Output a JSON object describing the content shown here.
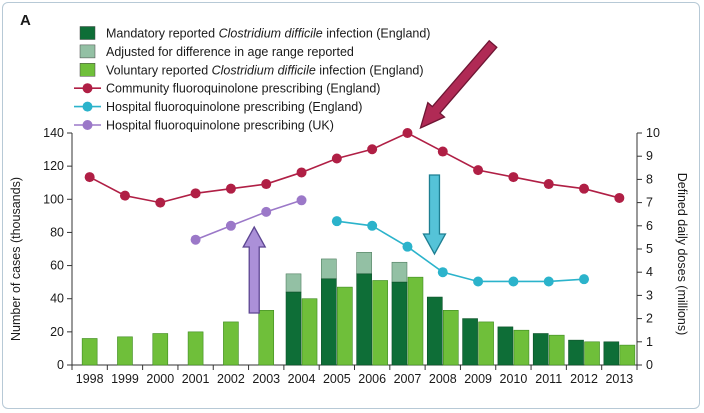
{
  "chart_data": {
    "type": "bar+line",
    "panel_label": "A",
    "years": [
      "1998",
      "1999",
      "2000",
      "2001",
      "2002",
      "2003",
      "2004",
      "2005",
      "2006",
      "2007",
      "2008",
      "2009",
      "2010",
      "2011",
      "2012",
      "2013"
    ],
    "left_axis": {
      "title": "Number of cases (thousands)",
      "min": 0,
      "max": 140,
      "ticks": [
        0,
        20,
        40,
        60,
        80,
        100,
        120,
        140
      ]
    },
    "right_axis": {
      "title": "Defined daily doses (millions)",
      "min": 0,
      "max": 10,
      "ticks": [
        0,
        1,
        2,
        3,
        4,
        5,
        6,
        7,
        8,
        9,
        10
      ]
    },
    "legend": [
      {
        "key": "mandatory",
        "text_pre": "Mandatory reported ",
        "text_italic": "Clostridium difficile",
        "text_post": " infection (England)",
        "symbol": "bar",
        "color": "#0e6e37"
      },
      {
        "key": "adjusted",
        "text_pre": "Adjusted for difference in age range reported",
        "text_italic": "",
        "text_post": "",
        "symbol": "bar",
        "color": "#93c0a4"
      },
      {
        "key": "voluntary",
        "text_pre": "Voluntary reported ",
        "text_italic": "Clostridium difficile",
        "text_post": " infection (England)",
        "symbol": "bar",
        "color": "#6fbf3a"
      },
      {
        "key": "community",
        "text_pre": "Community fluoroquinolone prescribing (England)",
        "text_italic": "",
        "text_post": "",
        "symbol": "line",
        "color": "#b01f45"
      },
      {
        "key": "hospital_eng",
        "text_pre": "Hospital fluoroquinolone prescribing (England)",
        "text_italic": "",
        "text_post": "",
        "symbol": "line",
        "color": "#2bb3cb"
      },
      {
        "key": "hospital_uk",
        "text_pre": "Hospital fluoroquinolone prescribing (UK)",
        "text_italic": "",
        "text_post": "",
        "symbol": "line",
        "color": "#9b78c8"
      }
    ],
    "bars": {
      "mandatory": [
        null,
        null,
        null,
        null,
        null,
        null,
        44,
        52,
        55,
        50,
        41,
        28,
        23,
        19,
        15,
        14
      ],
      "adjusted_total": [
        null,
        null,
        null,
        null,
        null,
        null,
        55,
        64,
        68,
        62,
        null,
        null,
        null,
        null,
        null,
        null
      ],
      "voluntary": [
        16,
        17,
        19,
        20,
        26,
        33,
        40,
        47,
        51,
        53,
        33,
        26,
        21,
        18,
        14,
        12
      ]
    },
    "lines": {
      "community": [
        8.1,
        7.3,
        7.0,
        7.4,
        7.6,
        7.8,
        8.3,
        8.9,
        9.3,
        10.0,
        9.2,
        8.4,
        8.1,
        7.8,
        7.6,
        7.2
      ],
      "hospital_eng": [
        null,
        null,
        null,
        null,
        null,
        null,
        null,
        6.2,
        6.0,
        5.1,
        4.0,
        3.6,
        3.6,
        3.6,
        3.7,
        null
      ],
      "hospital_uk": [
        null,
        null,
        null,
        5.4,
        6.0,
        6.6,
        7.1,
        null,
        null,
        null,
        null,
        null,
        null,
        null,
        null,
        null
      ]
    },
    "annotations": [
      {
        "type": "arrow",
        "direction": "down-left",
        "color": "#b01f45",
        "target_year": "2007",
        "target_series": "community"
      },
      {
        "type": "arrow",
        "direction": "down",
        "color": "#3fbfd3",
        "target_year": "2007",
        "target_series": "hospital_eng"
      },
      {
        "type": "arrow",
        "direction": "up",
        "color": "#a98ad6",
        "target_year": "2003",
        "target_series": "hospital_uk"
      }
    ]
  }
}
